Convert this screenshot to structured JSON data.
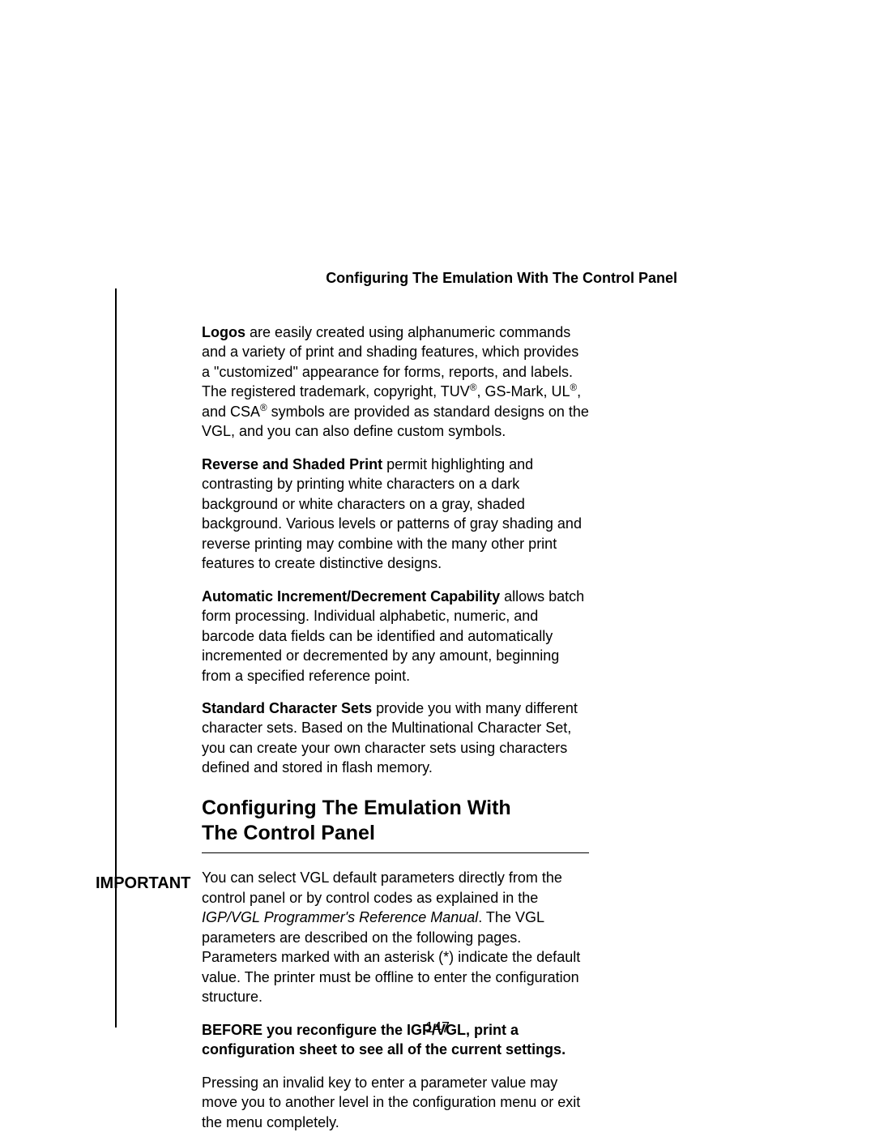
{
  "header": {
    "title": "Configuring The Emulation With The Control Panel"
  },
  "paragraphs": {
    "p1_bold": "Logos",
    "p1_text_a": " are easily created using alphanumeric commands and a variety of print and shading features, which provides a \"customized\" appearance for forms, reports, and labels. The registered trademark, copyright, TUV",
    "p1_sup1": "®",
    "p1_text_b": ", GS-Mark, UL",
    "p1_sup2": "®",
    "p1_text_c": ", and CSA",
    "p1_sup3": "®",
    "p1_text_d": " symbols are provided as standard designs on the VGL, and you can also define custom symbols.",
    "p2_bold": "Reverse and Shaded Print",
    "p2_text": " permit highlighting and contrasting by printing white characters on a dark background or white characters on a gray, shaded background. Various levels or patterns of gray shading and reverse printing may combine with the many other print features to create distinctive designs.",
    "p3_bold": "Automatic Increment/Decrement Capability",
    "p3_text": " allows batch form processing. Individual alphabetic, numeric, and barcode data fields can be identified and automatically incremented or decremented by any amount, beginning from a specified reference point.",
    "p4_bold": "Standard Character Sets",
    "p4_text": " provide you with many different character sets. Based on the Multinational Character Set, you can create your own character sets using characters defined and stored in flash memory."
  },
  "section": {
    "heading_line1": "Configuring The Emulation With",
    "heading_line2": "The Control Panel",
    "intro_a": "You can select VGL default parameters directly from the control panel or by control codes as explained in the ",
    "intro_italic": "IGP/VGL Programmer's Reference Manual",
    "intro_b": ". The VGL parameters are described on the following pages. Parameters marked with an asterisk (*) indicate the default value. The printer must be offline to enter the configuration structure."
  },
  "important": {
    "label": "IMPORTANT",
    "bold_text": "BEFORE you reconfigure the IGP/VGL, print a configuration sheet to see all of the current settings.",
    "follow_text": "Pressing an invalid key to enter a parameter value may move you to another level in the configuration menu or exit the menu completely."
  },
  "page_number": "147"
}
